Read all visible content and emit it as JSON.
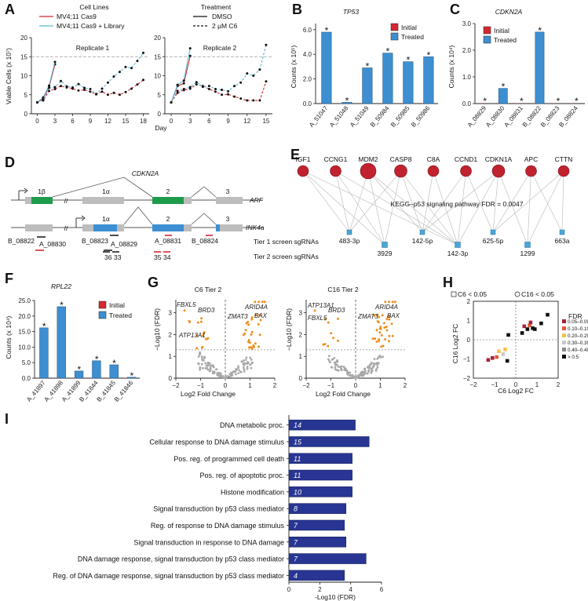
{
  "colors": {
    "red": "#d7282f",
    "blue": "#3d8fd1",
    "cyan": "#5ab6d6",
    "navy": "#283593",
    "orange": "#f0901e",
    "grey": "#a9a9a9",
    "green": "#1e9c4c",
    "darkred": "#a5223a",
    "nodeTeal": "#4ba6d8"
  },
  "panelA": {
    "label": "A",
    "legend_cl_title": "Cell Lines",
    "legend_cl": [
      "MV4;11 Cas9",
      "MV4;11 Cas9 + Library"
    ],
    "legend_tr_title": "Treatment",
    "legend_tr": [
      "DMSO",
      "2 µM C6"
    ],
    "ylabel": "Viable Cells (x 10⁷)",
    "xlabel": "Day",
    "sub": [
      {
        "title": "Replicate 1",
        "xticks": [
          "0",
          "3",
          "6",
          "9",
          "12",
          "15",
          "18"
        ],
        "yticks": [
          "0",
          "5",
          "10",
          "15",
          "20"
        ]
      },
      {
        "title": "Replicate 2",
        "xticks": [
          "0",
          "3",
          "6",
          "9",
          "12",
          "15"
        ],
        "yticks": [
          "0",
          "5",
          "10",
          "15",
          "20"
        ]
      }
    ]
  },
  "panelB": {
    "label": "B",
    "title": "TP53",
    "ylabel": "Counts (x 10⁵)",
    "legend": [
      "Initial",
      "Treated"
    ],
    "star": "*",
    "yticks": [
      "0.0",
      "2.0",
      "4.0",
      "6.0"
    ]
  },
  "panelC": {
    "label": "C",
    "title": "CDKN2A",
    "ylabel": "Counts (x 10⁴)",
    "legend": [
      "Initial",
      "Treated"
    ],
    "star": "*",
    "yticks": [
      "0.0",
      "1.0",
      "2.0",
      "3.0"
    ]
  },
  "panelD": {
    "label": "D",
    "title": "CDKN2A",
    "exons_arf": [
      "1β",
      "1α",
      "2",
      "3"
    ],
    "arf": "ARF",
    "exons_ink": [
      "1α",
      "2",
      "3"
    ],
    "ink": "INK4a",
    "sgrnas": [
      "B_08822",
      "A_08830",
      "B_08823",
      "A_08829",
      "A_08831",
      "B_08824"
    ],
    "tier1": "Tier 1 screen sgRNAs",
    "tier2": "Tier 2 screen sgRNAs",
    "tier2_nums": [
      "36",
      "33",
      "35",
      "34"
    ]
  },
  "panelE": {
    "label": "E",
    "genes": [
      "IGF1",
      "CCNG1",
      "MDM2",
      "CASP8",
      "C8A",
      "CCND1",
      "CDKN1A",
      "APC",
      "CTTN"
    ],
    "mirnas_top": [
      "483-3p",
      "142-5p",
      "625-5p",
      "663a"
    ],
    "mirnas_bottom": [
      "3929",
      "142-3p",
      "1299"
    ],
    "center": "KEGG–p53 signaling pathway FDR = 0.0047"
  },
  "panelF": {
    "label": "F",
    "title": "RPL22",
    "ylabel": "Counts (x 10⁴)",
    "legend": [
      "Initial",
      "Treated"
    ],
    "star": "*",
    "yticks": [
      "0.0",
      "5.0",
      "10.0",
      "15.0",
      "20.0",
      "25.0"
    ]
  },
  "panelG": {
    "label": "G",
    "plots": [
      {
        "title": "C6 Tier 2",
        "genes": [
          "FBXL5",
          "BRD3",
          "ATP13A1",
          "ARID4A",
          "ZMAT3",
          "BAX"
        ]
      },
      {
        "title": "C16 Tier 2",
        "genes": [
          "ATP13A1",
          "BRD3",
          "FBXL5",
          "ARID4A",
          "ZMAT3",
          "BAX"
        ]
      }
    ],
    "xlabel": "Log2 Fold Change",
    "ylabel": "−Log10 (FDR)",
    "xticks": [
      "−2",
      "−1",
      "0",
      "1",
      "2"
    ],
    "yticks": [
      "0",
      "1",
      "2",
      "3"
    ]
  },
  "panelH": {
    "label": "H",
    "legend_a": "C6 < 0.05",
    "legend_b": "C16 < 0.05",
    "fdr_title": "FDR",
    "fdr_bins": [
      "0.05–0.09",
      "0.10–0.19",
      "0.20–0.29",
      "0.30–0.39",
      "0.40–0.49",
      "> 0.5"
    ],
    "fdr_colors": [
      "#a5223a",
      "#e55a3c",
      "#f5c24a",
      "#c8c8c8",
      "#8a8a8a",
      "#111111"
    ],
    "xlabel": "C6 Log2 FC",
    "ylabel": "C16 Log2 FC",
    "xticks": [
      "−2",
      "−1",
      "0",
      "1",
      "2"
    ],
    "yticks": [
      "−2",
      "−1",
      "0",
      "1",
      "2"
    ]
  },
  "panelI": {
    "label": "I",
    "xlabel": "-Log10 (FDR)",
    "xticks": [
      "0",
      "2",
      "4",
      "6"
    ]
  },
  "chart_data": [
    {
      "type": "line",
      "panel": "A",
      "title": "Replicate 1",
      "xlabel": "Day",
      "ylabel": "Viable Cells (x 10^7)",
      "xlim": [
        -1,
        19
      ],
      "ylim": [
        0,
        20
      ],
      "threshold": 15,
      "series": [
        {
          "name": "MV4;11 Cas9 (C6)",
          "style": "red-dashed",
          "x": [
            0,
            1,
            2,
            3,
            4,
            5,
            6,
            7,
            8,
            9,
            10,
            11,
            12,
            13,
            14,
            15,
            16,
            17,
            18
          ],
          "y": [
            3.0,
            3.5,
            6.0,
            6.5,
            7.3,
            6.9,
            6.6,
            6.1,
            6.3,
            5.8,
            5.1,
            5.8,
            5.0,
            5.5,
            5.0,
            5.7,
            6.6,
            7.7,
            8.9
          ]
        },
        {
          "name": "MV4;11 Cas9 (DMSO)",
          "style": "red-solid",
          "x": [
            0,
            1,
            2,
            3
          ],
          "y": [
            3.0,
            4.0,
            7.0,
            13.0
          ]
        },
        {
          "name": "MV4;11 Cas9 + Library (DMSO)",
          "style": "blue-solid",
          "x": [
            0,
            1,
            2,
            3
          ],
          "y": [
            3.0,
            4.3,
            7.4,
            13.6
          ]
        },
        {
          "name": "MV4;11 Cas9 + Library (C6)",
          "style": "blue-dashed",
          "x": [
            0,
            1,
            2,
            3,
            4,
            5,
            6,
            7,
            8,
            9,
            10,
            11,
            12,
            13,
            14,
            15,
            16,
            17,
            18
          ],
          "y": [
            3.0,
            3.7,
            6.8,
            7.0,
            8.6,
            7.2,
            6.9,
            7.8,
            6.8,
            6.5,
            5.2,
            6.6,
            8.2,
            9.8,
            11.0,
            12.3,
            12.0,
            13.9,
            16.0
          ]
        }
      ]
    },
    {
      "type": "line",
      "panel": "A",
      "title": "Replicate 2",
      "xlabel": "Day",
      "ylabel": "Viable Cells (x 10^7)",
      "xlim": [
        -1,
        16
      ],
      "ylim": [
        0,
        20
      ],
      "threshold": 15,
      "series": [
        {
          "name": "MV4;11 Cas9 (C6)",
          "style": "red-dashed",
          "x": [
            0,
            1,
            2,
            3,
            4,
            5,
            6,
            7,
            8,
            9,
            10,
            11,
            12,
            13,
            14,
            15
          ],
          "y": [
            3.0,
            5.5,
            6.2,
            6.6,
            7.7,
            7.3,
            6.5,
            5.8,
            5.0,
            5.1,
            4.5,
            4.0,
            3.5,
            3.5,
            3.5,
            8.5
          ]
        },
        {
          "name": "MV4;11 Cas9 (DMSO)",
          "style": "red-solid",
          "x": [
            0,
            1,
            2,
            3
          ],
          "y": [
            3.0,
            7.3,
            8.0,
            15.2
          ]
        },
        {
          "name": "MV4;11 Cas9 + Library (DMSO)",
          "style": "blue-solid",
          "x": [
            0,
            1,
            2,
            3
          ],
          "y": [
            3.0,
            7.6,
            8.7,
            17.2
          ]
        },
        {
          "name": "MV4;11 Cas9 + Library (C6)",
          "style": "blue-dashed",
          "x": [
            0,
            1,
            2,
            3,
            4,
            5,
            6,
            7,
            8,
            9,
            10,
            11,
            12,
            13,
            14,
            15
          ],
          "y": [
            3.0,
            6.0,
            6.5,
            7.0,
            8.3,
            7.1,
            7.3,
            6.5,
            6.3,
            5.9,
            7.3,
            8.2,
            10.6,
            10.0,
            11.6,
            18.1
          ]
        }
      ]
    },
    {
      "type": "bar",
      "panel": "B",
      "title": "TP53",
      "ylabel": "Counts (x 10^5)",
      "ylim": [
        0,
        6.5
      ],
      "categories": [
        "A_51047",
        "A_51048",
        "A_51049",
        "B_50984",
        "B_50985",
        "B_50986"
      ],
      "series": [
        {
          "name": "Initial",
          "values": [
            0.02,
            0.02,
            0.02,
            0.02,
            0.02,
            0.02
          ]
        },
        {
          "name": "Treated",
          "values": [
            5.8,
            0.1,
            2.9,
            4.1,
            3.4,
            3.8
          ]
        }
      ]
    },
    {
      "type": "bar",
      "panel": "C",
      "title": "CDKN2A",
      "ylabel": "Counts (x 10^4)",
      "ylim": [
        0,
        3.0
      ],
      "categories": [
        "A_08829",
        "A_08830",
        "A_08831",
        "B_08822",
        "B_08823",
        "B_08824"
      ],
      "series": [
        {
          "name": "Initial",
          "values": [
            0.0,
            0.0,
            0.0,
            0.0,
            0.0,
            0.0
          ]
        },
        {
          "name": "Treated",
          "values": [
            0.0,
            0.57,
            0.0,
            2.68,
            0.0,
            0.0
          ]
        }
      ]
    },
    {
      "type": "bar",
      "panel": "F",
      "title": "RPL22",
      "ylabel": "Counts (x 10^4)",
      "ylim": [
        0,
        25
      ],
      "categories": [
        "A_41897",
        "A_41898",
        "A_41899",
        "B_41844",
        "B_41845",
        "B_41846"
      ],
      "series": [
        {
          "name": "Initial",
          "values": [
            0.05,
            0.05,
            0.05,
            0.05,
            0.05,
            0.05
          ]
        },
        {
          "name": "Treated",
          "values": [
            16.2,
            23.0,
            2.3,
            5.6,
            4.3,
            0.3
          ]
        }
      ]
    },
    {
      "type": "scatter",
      "panel": "H",
      "xlabel": "C6 Log2 FC",
      "ylabel": "C16 Log2 FC",
      "xlim": [
        -2,
        2
      ],
      "ylim": [
        -2,
        2
      ],
      "points": [
        {
          "x": -1.3,
          "y": -1.05,
          "fdr": "0.05-0.09"
        },
        {
          "x": -1.1,
          "y": -0.95,
          "fdr": "0.05-0.09"
        },
        {
          "x": -0.9,
          "y": -0.9,
          "fdr": "0.10-0.19"
        },
        {
          "x": -0.8,
          "y": -0.6,
          "fdr": "0.20-0.29"
        },
        {
          "x": -0.6,
          "y": -0.75,
          "fdr": "0.30-0.39"
        },
        {
          "x": -0.5,
          "y": -0.5,
          "fdr": "0.20-0.29"
        },
        {
          "x": -0.4,
          "y": -1.1,
          "fdr": "> 0.5"
        },
        {
          "x": -0.35,
          "y": 0.25,
          "fdr": "> 0.5"
        },
        {
          "x": 0.3,
          "y": 0.35,
          "fdr": "> 0.5"
        },
        {
          "x": 0.4,
          "y": 0.7,
          "fdr": "0.05-0.09"
        },
        {
          "x": 0.55,
          "y": 0.55,
          "fdr": "> 0.5"
        },
        {
          "x": 0.65,
          "y": 0.75,
          "fdr": "0.10-0.19"
        },
        {
          "x": 0.7,
          "y": 0.9,
          "fdr": "0.05-0.09"
        },
        {
          "x": 0.8,
          "y": 0.6,
          "fdr": "> 0.5"
        },
        {
          "x": 0.9,
          "y": 0.55,
          "fdr": "> 0.5"
        },
        {
          "x": 1.2,
          "y": 0.85,
          "fdr": "> 0.5"
        },
        {
          "x": 1.5,
          "y": 1.3,
          "fdr": "> 0.5"
        }
      ]
    },
    {
      "type": "bar",
      "panel": "I",
      "orientation": "horizontal",
      "xlabel": "-Log10 (FDR)",
      "xlim": [
        0,
        6
      ],
      "categories": [
        "DNA metabolic proc.",
        "Cellular response to DNA damage stimulus",
        "Pos. reg. of programmed cell death",
        "Pos. reg. of apoptotic proc.",
        "Histone modification",
        "Signal transduction by p53 class mediator",
        "Reg. of response to DNA damage stimulus",
        "Signal transduction in response to DNA damage",
        "DNA damage response, signal transduction by p53 class mediator",
        "Reg. of DNA damage response, signal transduction by p53 class mediator"
      ],
      "values": [
        4.3,
        5.2,
        4.1,
        4.1,
        4.1,
        3.7,
        3.6,
        3.7,
        5.0,
        3.6
      ],
      "counts": [
        "14",
        "15",
        "11",
        "11",
        "10",
        "8",
        "7",
        "7",
        "7",
        "4"
      ]
    }
  ]
}
